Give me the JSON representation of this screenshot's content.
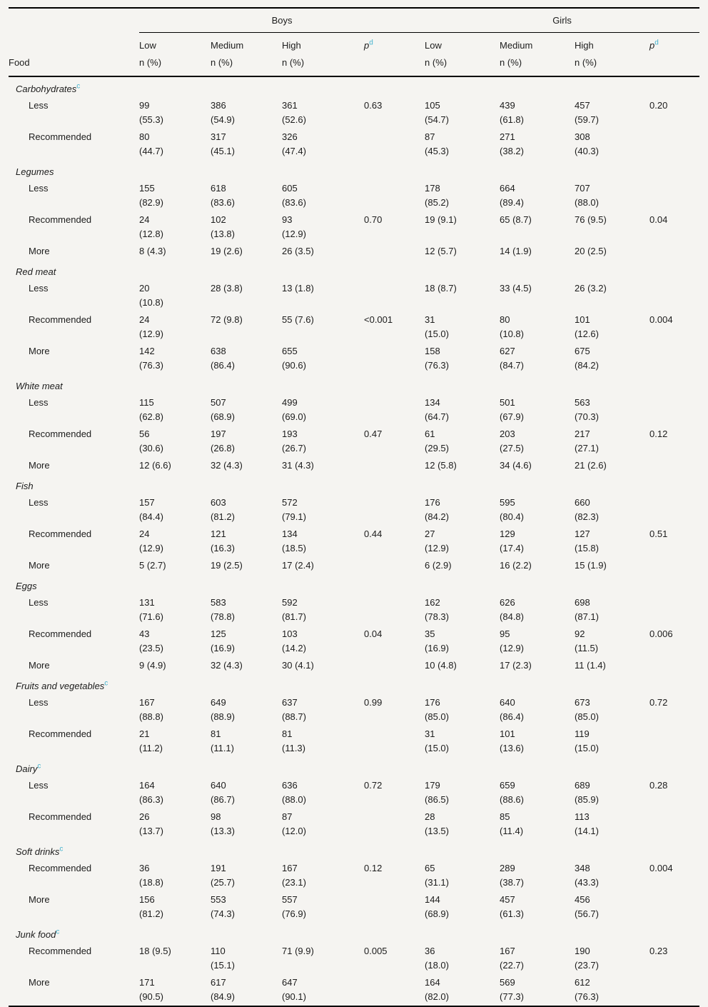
{
  "theme": {
    "background": "#f5f4f1",
    "footnote_color": "#45b3ce",
    "rule_color": "#000000"
  },
  "table": {
    "groups": [
      {
        "label": "Boys"
      },
      {
        "label": "Girls"
      }
    ],
    "col_headers": {
      "food": "Food",
      "low": "Low",
      "medium": "Medium",
      "high": "High",
      "p_label": "p",
      "p_sup": "d",
      "n_label": "n (%)"
    },
    "sections": [
      {
        "name": "Carbohydrates",
        "sup": "c",
        "rows": [
          {
            "label": "Less",
            "cells": [
              "99\n(55.3)",
              "386\n(54.9)",
              "361\n(52.6)",
              "0.63",
              "105\n(54.7)",
              "439\n(61.8)",
              "457\n(59.7)",
              "0.20"
            ]
          },
          {
            "label": "Recommended",
            "cells": [
              "80\n(44.7)",
              "317\n(45.1)",
              "326\n(47.4)",
              "",
              "87\n(45.3)",
              "271\n(38.2)",
              "308\n(40.3)",
              ""
            ]
          }
        ]
      },
      {
        "name": "Legumes",
        "sup": "",
        "rows": [
          {
            "label": "Less",
            "cells": [
              "155\n(82.9)",
              "618\n(83.6)",
              "605\n(83.6)",
              "",
              "178\n(85.2)",
              "664\n(89.4)",
              "707\n(88.0)",
              ""
            ]
          },
          {
            "label": "Recommended",
            "cells": [
              "24\n(12.8)",
              "102\n(13.8)",
              "93\n(12.9)",
              "0.70",
              "19 (9.1)",
              "65 (8.7)",
              "76 (9.5)",
              "0.04"
            ]
          },
          {
            "label": "More",
            "cells": [
              "8 (4.3)",
              "19 (2.6)",
              "26 (3.5)",
              "",
              "12 (5.7)",
              "14 (1.9)",
              "20 (2.5)",
              ""
            ]
          }
        ]
      },
      {
        "name": "Red meat",
        "sup": "",
        "rows": [
          {
            "label": "Less",
            "cells": [
              "20\n(10.8)",
              "28 (3.8)",
              "13 (1.8)",
              "",
              "18 (8.7)",
              "33 (4.5)",
              "26 (3.2)",
              ""
            ]
          },
          {
            "label": "Recommended",
            "cells": [
              "24\n(12.9)",
              "72 (9.8)",
              "55 (7.6)",
              "<0.001",
              "31\n(15.0)",
              "80\n(10.8)",
              "101\n(12.6)",
              "0.004"
            ]
          },
          {
            "label": "More",
            "cells": [
              "142\n(76.3)",
              "638\n(86.4)",
              "655\n(90.6)",
              "",
              "158\n(76.3)",
              "627\n(84.7)",
              "675\n(84.2)",
              ""
            ]
          }
        ]
      },
      {
        "name": "White meat",
        "sup": "",
        "rows": [
          {
            "label": "Less",
            "cells": [
              "115\n(62.8)",
              "507\n(68.9)",
              "499\n(69.0)",
              "",
              "134\n(64.7)",
              "501\n(67.9)",
              "563\n(70.3)",
              ""
            ]
          },
          {
            "label": "Recommended",
            "cells": [
              "56\n(30.6)",
              "197\n(26.8)",
              "193\n(26.7)",
              "0.47",
              "61\n(29.5)",
              "203\n(27.5)",
              "217\n(27.1)",
              "0.12"
            ]
          },
          {
            "label": "More",
            "cells": [
              "12 (6.6)",
              "32 (4.3)",
              "31 (4.3)",
              "",
              "12 (5.8)",
              "34 (4.6)",
              "21 (2.6)",
              ""
            ]
          }
        ]
      },
      {
        "name": "Fish",
        "sup": "",
        "rows": [
          {
            "label": "Less",
            "cells": [
              "157\n(84.4)",
              "603\n(81.2)",
              "572\n(79.1)",
              "",
              "176\n(84.2)",
              "595\n(80.4)",
              "660\n(82.3)",
              ""
            ]
          },
          {
            "label": "Recommended",
            "cells": [
              "24\n(12.9)",
              "121\n(16.3)",
              "134\n(18.5)",
              "0.44",
              "27\n(12.9)",
              "129\n(17.4)",
              "127\n(15.8)",
              "0.51"
            ]
          },
          {
            "label": "More",
            "cells": [
              "5 (2.7)",
              "19 (2.5)",
              "17 (2.4)",
              "",
              "6 (2.9)",
              "16 (2.2)",
              "15 (1.9)",
              ""
            ]
          }
        ]
      },
      {
        "name": "Eggs",
        "sup": "",
        "rows": [
          {
            "label": "Less",
            "cells": [
              "131\n(71.6)",
              "583\n(78.8)",
              "592\n(81.7)",
              "",
              "162\n(78.3)",
              "626\n(84.8)",
              "698\n(87.1)",
              ""
            ]
          },
          {
            "label": "Recommended",
            "cells": [
              "43\n(23.5)",
              "125\n(16.9)",
              "103\n(14.2)",
              "0.04",
              "35\n(16.9)",
              "95\n(12.9)",
              "92\n(11.5)",
              "0.006"
            ]
          },
          {
            "label": "More",
            "cells": [
              "9 (4.9)",
              "32 (4.3)",
              "30 (4.1)",
              "",
              "10 (4.8)",
              "17 (2.3)",
              "11 (1.4)",
              ""
            ]
          }
        ]
      },
      {
        "name": "Fruits and vegetables",
        "sup": "c",
        "rows": [
          {
            "label": "Less",
            "cells": [
              "167\n(88.8)",
              "649\n(88.9)",
              "637\n(88.7)",
              "0.99",
              "176\n(85.0)",
              "640\n(86.4)",
              "673\n(85.0)",
              "0.72"
            ]
          },
          {
            "label": "Recommended",
            "cells": [
              "21\n(11.2)",
              "81\n(11.1)",
              "81\n(11.3)",
              "",
              "31\n(15.0)",
              "101\n(13.6)",
              "119\n(15.0)",
              ""
            ]
          }
        ]
      },
      {
        "name": "Dairy",
        "sup": "c",
        "rows": [
          {
            "label": "Less",
            "cells": [
              "164\n(86.3)",
              "640\n(86.7)",
              "636\n(88.0)",
              "0.72",
              "179\n(86.5)",
              "659\n(88.6)",
              "689\n(85.9)",
              "0.28"
            ]
          },
          {
            "label": "Recommended",
            "cells": [
              "26\n(13.7)",
              "98\n(13.3)",
              "87\n(12.0)",
              "",
              "28\n(13.5)",
              "85\n(11.4)",
              "113\n(14.1)",
              ""
            ]
          }
        ]
      },
      {
        "name": "Soft drinks",
        "sup": "c",
        "rows": [
          {
            "label": "Recommended",
            "cells": [
              "36\n(18.8)",
              "191\n(25.7)",
              "167\n(23.1)",
              "0.12",
              "65\n(31.1)",
              "289\n(38.7)",
              "348\n(43.3)",
              "0.004"
            ]
          },
          {
            "label": "More",
            "cells": [
              "156\n(81.2)",
              "553\n(74.3)",
              "557\n(76.9)",
              "",
              "144\n(68.9)",
              "457\n(61.3)",
              "456\n(56.7)",
              ""
            ]
          }
        ]
      },
      {
        "name": "Junk food",
        "sup": "c",
        "rows": [
          {
            "label": "Recommended",
            "cells": [
              "18 (9.5)",
              "110\n(15.1)",
              "71 (9.9)",
              "0.005",
              "36\n(18.0)",
              "167\n(22.7)",
              "190\n(23.7)",
              "0.23"
            ]
          },
          {
            "label": "More",
            "cells": [
              "171\n(90.5)",
              "617\n(84.9)",
              "647\n(90.1)",
              "",
              "164\n(82.0)",
              "569\n(77.3)",
              "612\n(76.3)",
              ""
            ]
          }
        ]
      }
    ]
  }
}
